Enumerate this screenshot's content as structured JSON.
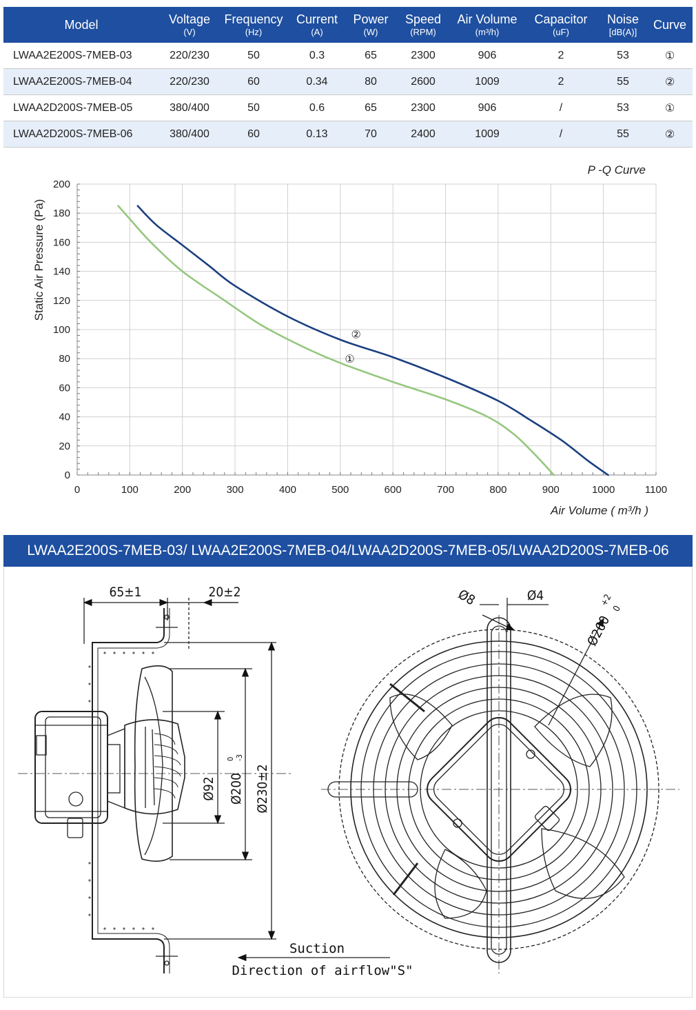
{
  "spec_table": {
    "headers": [
      {
        "label": "Model",
        "unit": ""
      },
      {
        "label": "Voltage",
        "unit": "(V)"
      },
      {
        "label": "Frequency",
        "unit": "(Hz)"
      },
      {
        "label": "Current",
        "unit": "(A)"
      },
      {
        "label": "Power",
        "unit": "(W)"
      },
      {
        "label": "Speed",
        "unit": "(RPM)"
      },
      {
        "label": "Air Volume",
        "unit": "(m³/h)"
      },
      {
        "label": "Capacitor",
        "unit": "(uF)"
      },
      {
        "label": "Noise",
        "unit": "[dB(A)]"
      },
      {
        "label": "Curve",
        "unit": ""
      }
    ],
    "rows": [
      [
        "LWAA2E200S-7MEB-03",
        "220/230",
        "50",
        "0.3",
        "65",
        "2300",
        "906",
        "2",
        "53",
        "①"
      ],
      [
        "LWAA2E200S-7MEB-04",
        "220/230",
        "60",
        "0.34",
        "80",
        "2600",
        "1009",
        "2",
        "55",
        "②"
      ],
      [
        "LWAA2D200S-7MEB-05",
        "380/400",
        "50",
        "0.6",
        "65",
        "2300",
        "906",
        "/",
        "53",
        "①"
      ],
      [
        "LWAA2D200S-7MEB-06",
        "380/400",
        "60",
        "0.13",
        "70",
        "2400",
        "1009",
        "/",
        "55",
        "②"
      ]
    ]
  },
  "chart_data": {
    "type": "line",
    "title": "P -Q Curve",
    "xlabel": "Air Volume ( m³/h )",
    "ylabel": "Static Air Pressure  (Pa)",
    "xlim": [
      0,
      1100
    ],
    "ylim": [
      0,
      200
    ],
    "x_ticks": [
      0,
      100,
      200,
      300,
      400,
      500,
      600,
      700,
      800,
      900,
      1000,
      1100
    ],
    "y_ticks": [
      0,
      20,
      40,
      60,
      80,
      100,
      120,
      140,
      160,
      180,
      200
    ],
    "grid": true,
    "legend": "none",
    "series": [
      {
        "name": "①",
        "color": "#95c77f",
        "label_at": [
          518,
          80
        ],
        "points": [
          [
            78,
            185
          ],
          [
            100,
            176
          ],
          [
            140,
            160
          ],
          [
            200,
            140
          ],
          [
            280,
            120
          ],
          [
            350,
            103
          ],
          [
            430,
            88
          ],
          [
            500,
            77
          ],
          [
            600,
            64
          ],
          [
            700,
            52
          ],
          [
            780,
            40
          ],
          [
            830,
            28
          ],
          [
            870,
            14
          ],
          [
            906,
            0
          ]
        ]
      },
      {
        "name": "②",
        "color": "#1b3f80",
        "label_at": [
          530,
          97
        ],
        "points": [
          [
            115,
            185
          ],
          [
            150,
            172
          ],
          [
            200,
            158
          ],
          [
            250,
            144
          ],
          [
            300,
            130
          ],
          [
            400,
            109
          ],
          [
            500,
            93
          ],
          [
            600,
            81
          ],
          [
            700,
            67
          ],
          [
            800,
            51
          ],
          [
            860,
            38
          ],
          [
            920,
            24
          ],
          [
            970,
            10
          ],
          [
            1009,
            0
          ]
        ]
      }
    ]
  },
  "banner": {
    "text": "LWAA2E200S-7MEB-03/ LWAA2E200S-7MEB-04/LWAA2D200S-7MEB-05/LWAA2D200S-7MEB-06"
  },
  "drawing": {
    "dimensions": {
      "depth": "65±1",
      "offset": "20±2",
      "motor_dia": "Ø92",
      "blade_dia": "Ø200",
      "blade_tol_upper": "0",
      "blade_tol_lower": "-3",
      "guard_dia": "Ø230±2",
      "hole_dia": "Ø8",
      "hole_small": "Ø4",
      "outer_dia": "Ø260",
      "outer_tol_upper": "+2",
      "outer_tol_lower": "0"
    },
    "suction_label": "Suction",
    "airflow_label": "Direction of airflow\"S\""
  },
  "colors": {
    "header_blue": "#1e4fa0",
    "row_alt": "#e6eef9",
    "grid": "#d0d0d0"
  }
}
